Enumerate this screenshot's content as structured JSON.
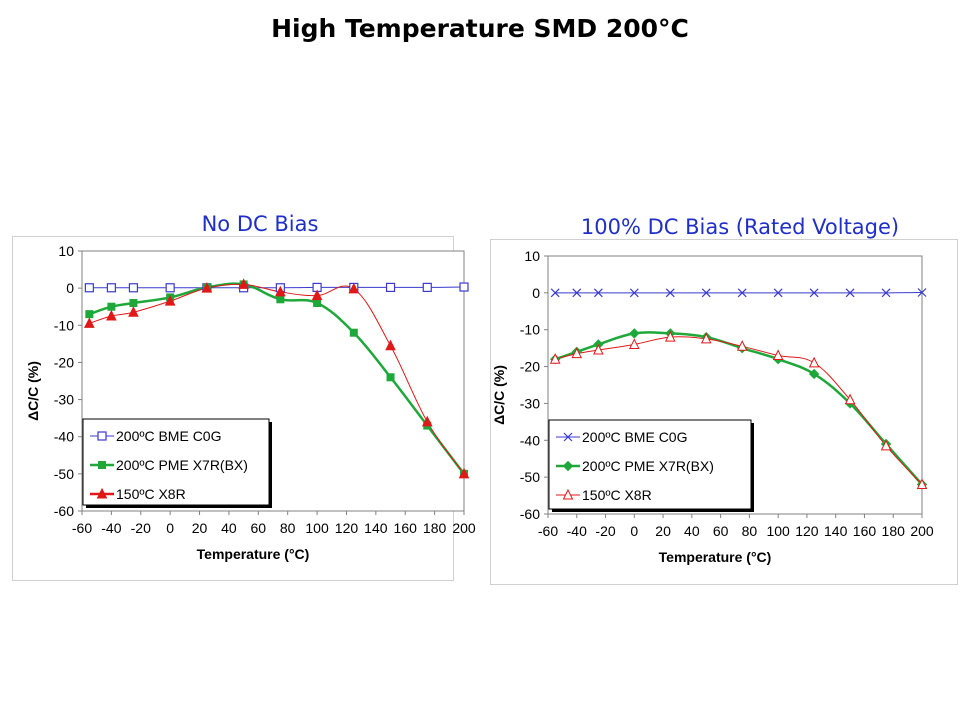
{
  "title": "High Temperature SMD 200°C",
  "chart_data": [
    {
      "type": "line",
      "title": "No DC Bias",
      "xlabel": "Temperature (°C)",
      "ylabel": "ΔC/C (%)",
      "xlim": [
        -60,
        200
      ],
      "ylim": [
        -60,
        10
      ],
      "x_tick_labels": [
        "-60",
        "-40",
        "-20",
        "0",
        "20",
        "40",
        "60",
        "80",
        "100",
        "120",
        "140",
        "160",
        "180",
        "200"
      ],
      "y_tick_labels": [
        "10",
        "0",
        "-10",
        "-20",
        "-30",
        "-40",
        "-50",
        "-60"
      ],
      "x_ticks": [
        -60,
        -40,
        -20,
        0,
        20,
        40,
        60,
        80,
        100,
        120,
        140,
        160,
        180,
        200
      ],
      "y_ticks": [
        10,
        0,
        -10,
        -20,
        -30,
        -40,
        -50,
        -60
      ],
      "legend_position": "bottom-left",
      "series": [
        {
          "name": "200ºC BME C0G",
          "color": "#3a3ad0",
          "marker": "square-open",
          "x": [
            -55,
            -40,
            -25,
            0,
            25,
            50,
            75,
            100,
            125,
            150,
            175,
            200
          ],
          "y": [
            0.1,
            0.1,
            0.1,
            0.1,
            0.1,
            0.1,
            0.1,
            0.2,
            0.2,
            0.2,
            0.2,
            0.3
          ]
        },
        {
          "name": "200ºC PME X7R(BX)",
          "color": "#1fa83a",
          "marker": "square-filled",
          "x": [
            -55,
            -40,
            -25,
            0,
            25,
            50,
            75,
            100,
            125,
            150,
            175,
            200
          ],
          "y": [
            -7,
            -5,
            -4,
            -2.5,
            0.2,
            1,
            -3,
            -4,
            -12,
            -24,
            -37,
            -50
          ]
        },
        {
          "name": "150ºC X8R",
          "color": "#e01818",
          "marker": "triangle-filled",
          "x": [
            -55,
            -40,
            -25,
            0,
            25,
            50,
            75,
            100,
            125,
            150,
            175,
            200
          ],
          "y": [
            -9.5,
            -7.5,
            -6.5,
            -3.5,
            0,
            1,
            -1,
            -2,
            -0.2,
            -15.5,
            -36,
            -50
          ]
        }
      ]
    },
    {
      "type": "line",
      "title": "100% DC Bias (Rated Voltage)",
      "xlabel": "Temperature (°C)",
      "ylabel": "ΔC/C (%)",
      "xlim": [
        -60,
        200
      ],
      "ylim": [
        -60,
        10
      ],
      "x_tick_labels": [
        "-60",
        "-40",
        "-20",
        "0",
        "20",
        "40",
        "60",
        "80",
        "100",
        "120",
        "140",
        "160",
        "180",
        "200"
      ],
      "y_tick_labels": [
        "10",
        "0",
        "-10",
        "-20",
        "-30",
        "-40",
        "-50",
        "-60"
      ],
      "x_ticks": [
        -60,
        -40,
        -20,
        0,
        20,
        40,
        60,
        80,
        100,
        120,
        140,
        160,
        180,
        200
      ],
      "y_ticks": [
        10,
        0,
        -10,
        -20,
        -30,
        -40,
        -50,
        -60
      ],
      "legend_position": "bottom-left",
      "series": [
        {
          "name": "200ºC BME C0G",
          "color": "#3a3ad0",
          "marker": "x",
          "x": [
            -55,
            -40,
            -25,
            0,
            25,
            50,
            75,
            100,
            125,
            150,
            175,
            200
          ],
          "y": [
            0,
            0,
            0,
            0,
            0,
            0,
            0,
            0,
            0,
            0,
            0,
            0.1
          ]
        },
        {
          "name": "200ºC PME X7R(BX)",
          "color": "#1fa83a",
          "marker": "diamond-filled",
          "x": [
            -55,
            -40,
            -25,
            0,
            25,
            50,
            75,
            100,
            125,
            150,
            175,
            200
          ],
          "y": [
            -18,
            -16,
            -14,
            -11,
            -11,
            -12,
            -15,
            -18,
            -22,
            -30,
            -41,
            -52
          ]
        },
        {
          "name": "150ºC X8R",
          "color": "#e01818",
          "marker": "triangle-open",
          "x": [
            -55,
            -40,
            -25,
            0,
            25,
            50,
            75,
            100,
            125,
            150,
            175,
            200
          ],
          "y": [
            -18,
            -16.5,
            -15.5,
            -14,
            -12,
            -12.5,
            -14.5,
            -17,
            -19,
            -29,
            -41.5,
            -52
          ]
        }
      ]
    }
  ]
}
